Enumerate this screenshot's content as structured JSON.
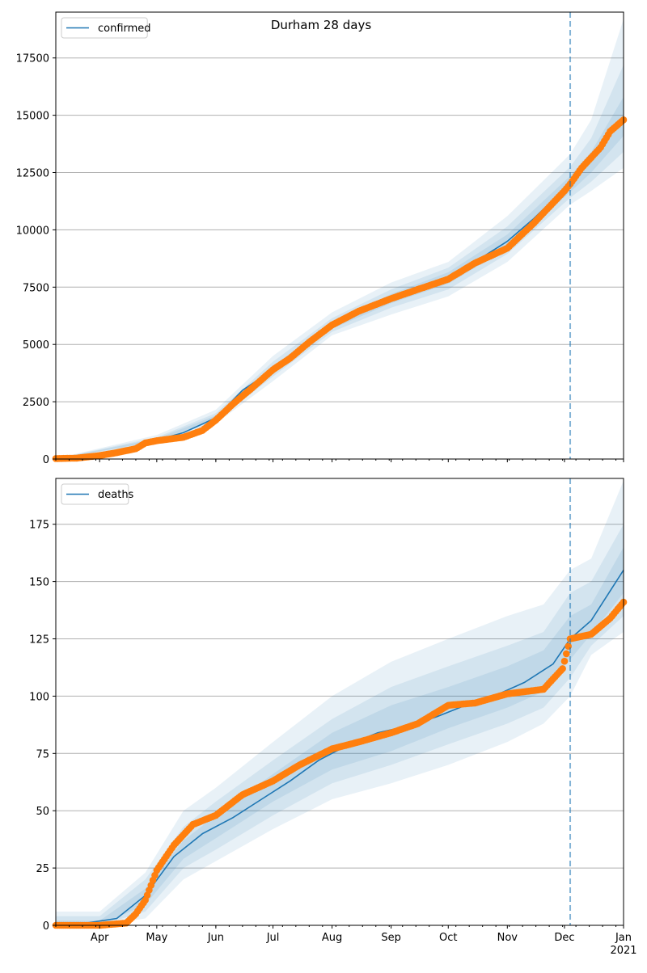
{
  "title": "Durham 28 days",
  "chart_data": [
    {
      "type": "line",
      "panel": "top",
      "legend": {
        "label": "confirmed",
        "placement": "top-left"
      },
      "x_tick_labels": [
        "Apr",
        "May",
        "Jun",
        "Jul",
        "Aug",
        "Sep",
        "Oct",
        "Nov",
        "Dec",
        "Jan\n2021"
      ],
      "ylim": [
        0,
        19500
      ],
      "yticks": [
        0,
        2500,
        5000,
        7500,
        10000,
        12500,
        15000,
        17500
      ],
      "grid": "horizontal",
      "forecast_start": "2020-12-04",
      "model_line": {
        "name": "confirmed",
        "x": [
          "2020-03-09",
          "2020-04-01",
          "2020-05-01",
          "2020-05-15",
          "2020-06-01",
          "2020-06-15",
          "2020-07-01",
          "2020-07-15",
          "2020-08-01",
          "2020-08-15",
          "2020-09-01",
          "2020-09-15",
          "2020-10-01",
          "2020-10-15",
          "2020-11-01",
          "2020-11-15",
          "2020-12-01",
          "2020-12-04",
          "2020-12-15",
          "2021-01-01"
        ],
        "values": [
          10,
          120,
          830,
          1150,
          1800,
          3000,
          3900,
          4700,
          5800,
          6400,
          7000,
          7400,
          7900,
          8600,
          9500,
          10500,
          11800,
          12100,
          13000,
          14900
        ]
      },
      "bands": [
        {
          "level": "outer",
          "x": [
            "2020-03-09",
            "2020-05-01",
            "2020-06-01",
            "2020-07-01",
            "2020-08-01",
            "2020-09-01",
            "2020-10-01",
            "2020-11-01",
            "2020-12-04",
            "2020-12-15",
            "2021-01-01"
          ],
          "lower": [
            0,
            650,
            1550,
            3400,
            5400,
            6300,
            7100,
            8600,
            11100,
            11700,
            12700
          ],
          "upper": [
            20,
            1050,
            2150,
            4500,
            6400,
            7700,
            8600,
            10600,
            13300,
            14800,
            19200
          ]
        },
        {
          "level": "middle",
          "x": [
            "2020-03-09",
            "2020-05-01",
            "2020-06-01",
            "2020-07-01",
            "2020-08-01",
            "2020-09-01",
            "2020-10-01",
            "2020-11-01",
            "2020-12-04",
            "2020-12-15",
            "2021-01-01"
          ],
          "lower": [
            0,
            720,
            1650,
            3600,
            5550,
            6600,
            7400,
            8950,
            11400,
            12100,
            13400
          ],
          "upper": [
            15,
            950,
            2000,
            4250,
            6150,
            7400,
            8350,
            10150,
            12750,
            14000,
            17200
          ]
        },
        {
          "level": "inner",
          "x": [
            "2020-03-09",
            "2020-05-01",
            "2020-06-01",
            "2020-07-01",
            "2020-08-01",
            "2020-09-01",
            "2020-10-01",
            "2020-11-01",
            "2020-12-04",
            "2020-12-15",
            "2021-01-01"
          ],
          "lower": [
            0,
            780,
            1720,
            3750,
            5680,
            6800,
            7650,
            9200,
            11650,
            12500,
            14100
          ],
          "upper": [
            12,
            890,
            1900,
            4050,
            5950,
            7200,
            8150,
            9800,
            12350,
            13400,
            15800
          ]
        }
      ],
      "observed": {
        "name": "observed",
        "x": [
          "2020-03-09",
          "2020-03-20",
          "2020-04-01",
          "2020-04-10",
          "2020-04-20",
          "2020-04-25",
          "2020-05-01",
          "2020-05-15",
          "2020-05-25",
          "2020-06-01",
          "2020-06-10",
          "2020-06-20",
          "2020-07-01",
          "2020-07-10",
          "2020-07-20",
          "2020-08-01",
          "2020-08-15",
          "2020-09-01",
          "2020-09-15",
          "2020-10-01",
          "2020-10-15",
          "2020-11-01",
          "2020-11-15",
          "2020-12-01",
          "2020-12-04",
          "2020-12-10",
          "2020-12-20",
          "2020-12-25",
          "2021-01-01"
        ],
        "values": [
          20,
          40,
          150,
          280,
          450,
          700,
          800,
          950,
          1250,
          1700,
          2400,
          3100,
          3900,
          4400,
          5100,
          5850,
          6450,
          7000,
          7400,
          7850,
          8550,
          9200,
          10300,
          11700,
          12000,
          12700,
          13600,
          14300,
          14800
        ]
      }
    },
    {
      "type": "line",
      "panel": "bottom",
      "legend": {
        "label": "deaths",
        "placement": "top-left"
      },
      "x_tick_labels": [
        "Apr",
        "May",
        "Jun",
        "Jul",
        "Aug",
        "Sep",
        "Oct",
        "Nov",
        "Dec",
        "Jan\n2021"
      ],
      "ylim": [
        0,
        195
      ],
      "yticks": [
        0,
        25,
        50,
        75,
        100,
        125,
        150,
        175
      ],
      "grid": "horizontal",
      "forecast_start": "2020-12-04",
      "model_line": {
        "name": "deaths",
        "x": [
          "2020-03-09",
          "2020-03-25",
          "2020-04-10",
          "2020-04-25",
          "2020-05-10",
          "2020-05-25",
          "2020-06-10",
          "2020-06-25",
          "2020-07-10",
          "2020-07-25",
          "2020-08-10",
          "2020-08-25",
          "2020-09-10",
          "2020-09-25",
          "2020-10-10",
          "2020-10-25",
          "2020-11-10",
          "2020-11-25",
          "2020-12-04",
          "2020-12-15",
          "2021-01-01"
        ],
        "values": [
          0,
          1,
          3,
          13,
          30,
          40,
          47,
          55,
          63,
          72,
          79,
          84,
          87,
          91,
          96,
          100,
          106,
          114,
          125,
          133,
          155
        ]
      },
      "bands": [
        {
          "level": "outer",
          "x": [
            "2020-03-09",
            "2020-04-01",
            "2020-04-25",
            "2020-05-15",
            "2020-06-01",
            "2020-07-01",
            "2020-08-01",
            "2020-09-01",
            "2020-10-01",
            "2020-11-01",
            "2020-11-20",
            "2020-12-04",
            "2020-12-15",
            "2021-01-01"
          ],
          "lower": [
            0,
            0,
            3,
            20,
            28,
            42,
            55,
            62,
            70,
            80,
            88,
            100,
            118,
            128
          ],
          "upper": [
            6,
            6,
            23,
            50,
            60,
            80,
            100,
            115,
            125,
            135,
            140,
            155,
            160,
            194
          ]
        },
        {
          "level": "middle",
          "x": [
            "2020-03-09",
            "2020-04-01",
            "2020-04-25",
            "2020-05-15",
            "2020-06-01",
            "2020-07-01",
            "2020-08-01",
            "2020-09-01",
            "2020-10-01",
            "2020-11-01",
            "2020-11-20",
            "2020-12-04",
            "2020-12-15",
            "2021-01-01"
          ],
          "lower": [
            0,
            0,
            6,
            25,
            33,
            48,
            62,
            70,
            79,
            88,
            95,
            108,
            122,
            135
          ],
          "upper": [
            4,
            4,
            20,
            43,
            54,
            72,
            90,
            104,
            113,
            122,
            128,
            145,
            150,
            175
          ]
        },
        {
          "level": "inner",
          "x": [
            "2020-03-09",
            "2020-04-01",
            "2020-04-25",
            "2020-05-15",
            "2020-06-01",
            "2020-07-01",
            "2020-08-01",
            "2020-09-01",
            "2020-10-01",
            "2020-11-01",
            "2020-11-20",
            "2020-12-04",
            "2020-12-15",
            "2021-01-01"
          ],
          "lower": [
            0,
            0,
            9,
            29,
            38,
            54,
            68,
            76,
            86,
            95,
            102,
            116,
            127,
            145
          ],
          "upper": [
            2,
            2,
            16,
            37,
            48,
            66,
            84,
            96,
            104,
            113,
            120,
            135,
            140,
            165
          ]
        }
      ],
      "observed": {
        "name": "observed",
        "x": [
          "2020-03-09",
          "2020-04-01",
          "2020-04-15",
          "2020-04-20",
          "2020-04-25",
          "2020-05-01",
          "2020-05-10",
          "2020-05-20",
          "2020-06-01",
          "2020-06-15",
          "2020-07-01",
          "2020-07-15",
          "2020-08-01",
          "2020-08-15",
          "2020-09-01",
          "2020-09-15",
          "2020-10-01",
          "2020-10-15",
          "2020-11-01",
          "2020-11-20",
          "2020-11-30",
          "2020-12-04",
          "2020-12-15",
          "2020-12-25",
          "2021-01-01"
        ],
        "values": [
          0,
          0,
          1,
          5,
          11,
          24,
          35,
          44,
          48,
          57,
          63,
          70,
          77,
          80,
          84,
          88,
          96,
          97,
          101,
          103,
          112,
          125,
          127,
          134,
          141
        ]
      }
    }
  ]
}
